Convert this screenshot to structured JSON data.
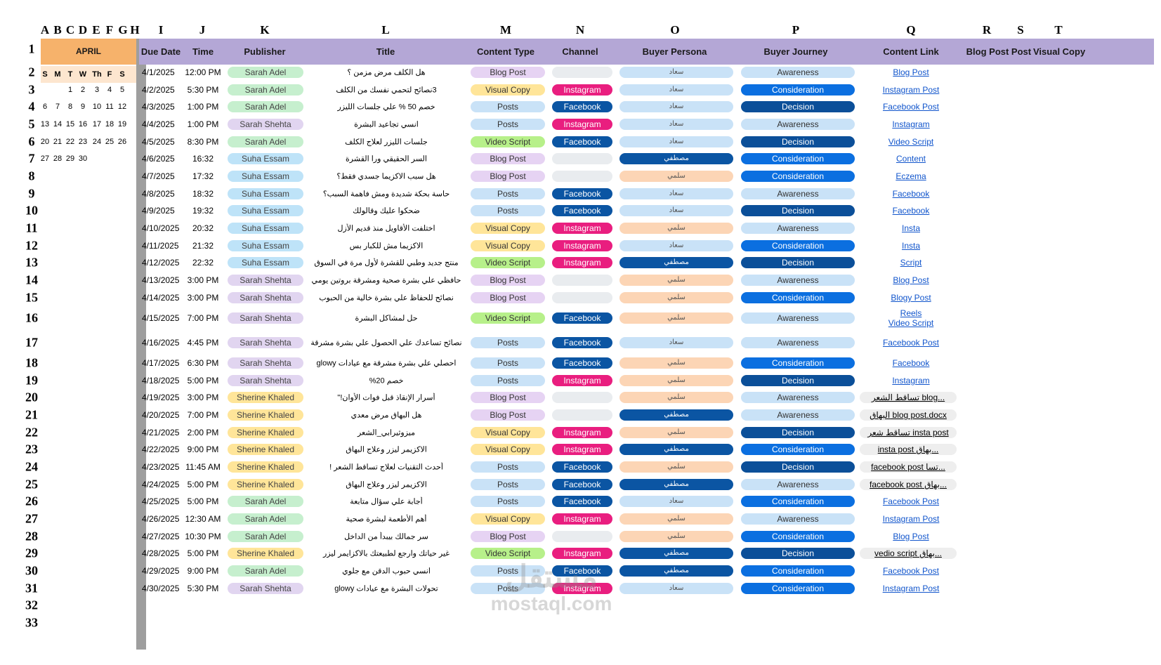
{
  "columns": [
    "A",
    "B",
    "C",
    "D",
    "E",
    "F",
    "G",
    "H",
    "I",
    "J",
    "K",
    "L",
    "M",
    "N",
    "O",
    "P",
    "Q",
    "R",
    "S",
    "T"
  ],
  "row_numbers": [
    "1",
    "2",
    "3",
    "4",
    "5",
    "6",
    "7",
    "8",
    "9",
    "10",
    "11",
    "12",
    "13",
    "14",
    "15",
    "16",
    "17",
    "18",
    "19",
    "20",
    "21",
    "22",
    "23",
    "24",
    "25",
    "26",
    "27",
    "28",
    "29",
    "30",
    "31",
    "32",
    "33"
  ],
  "calendar": {
    "month": "APRIL",
    "weekdays": [
      "S",
      "M",
      "T",
      "W",
      "Th",
      "F",
      "S"
    ],
    "weeks": [
      [
        "",
        "",
        "1",
        "2",
        "3",
        "4",
        "5"
      ],
      [
        "6",
        "7",
        "8",
        "9",
        "10",
        "11",
        "12"
      ],
      [
        "13",
        "14",
        "15",
        "16",
        "17",
        "18",
        "19"
      ],
      [
        "20",
        "21",
        "22",
        "23",
        "24",
        "25",
        "26"
      ],
      [
        "27",
        "28",
        "29",
        "30",
        "",
        "",
        ""
      ]
    ]
  },
  "headers": {
    "due_date": "Due Date",
    "time": "Time",
    "publisher": "Publisher",
    "title": "Title",
    "content_type": "Content Type",
    "channel": "Channel",
    "persona": "Buyer Persona",
    "journey": "Buyer Journey",
    "link": "Content Link",
    "blog_post": "Blog Post",
    "post": "Post",
    "visual_copy": "Visual Copy"
  },
  "colors": {
    "Sarah Adel": "#c6efce",
    "Sarah Shehta": "#e1d5f0",
    "Suha Essam": "#bee3f8",
    "Sherine Khaled": "#ffe599",
    "Blog Post": "#e6d3f3",
    "Visual Copy": "#ffe599",
    "Posts": "#c9e2f7",
    "Video Script": "#b7f08a",
    "Instagram": "#e91e7f",
    "Facebook": "#0b55a3",
    "empty_channel": "#e9ecef",
    "persona_1": "#c9e2f7",
    "persona_2": "#fcd5b5",
    "persona_3": "#0b55a3",
    "Awareness": "#c9e2f7",
    "Consideration": "#0b6fe0",
    "Decision": "#0b4f99"
  },
  "rows": [
    {
      "date": "4/1/2025",
      "time": "12:00 PM",
      "publisher": "Sarah Adel",
      "title": "هل الكلف مرض مزمن ؟",
      "type": "Blog Post",
      "channel": "",
      "persona": "سعاد",
      "persona_style": "persona_1",
      "journey": "Awareness",
      "link": "Blog Post",
      "link_style": "link"
    },
    {
      "date": "4/2/2025",
      "time": "5:30 PM",
      "publisher": "Sarah Adel",
      "title": "3نصائح لتحمي نفسك من الكلف",
      "type": "Visual Copy",
      "channel": "Instagram",
      "persona": "سعاد",
      "persona_style": "persona_1",
      "journey": "Consideration",
      "link": "Instagram Post",
      "link_style": "link"
    },
    {
      "date": "4/3/2025",
      "time": "1:00 PM",
      "publisher": "Sarah Adel",
      "title": "خصم 50 % علي جلسات الليزر",
      "type": "Posts",
      "channel": "Facebook",
      "persona": "سعاد",
      "persona_style": "persona_1",
      "journey": "Decision",
      "link": "Facebook Post",
      "link_style": "link"
    },
    {
      "date": "4/4/2025",
      "time": "1:00 PM",
      "publisher": "Sarah Shehta",
      "title": "انسي تجاعيد البشرة",
      "type": "Posts",
      "channel": "Instagram",
      "persona": "سعاد",
      "persona_style": "persona_1",
      "journey": "Awareness",
      "link": "Instagram",
      "link_style": "link"
    },
    {
      "date": "4/5/2025",
      "time": "8:30 PM",
      "publisher": "Sarah Adel",
      "title": "جلسات الليزر لعلاج الكلف",
      "type": "Video Script",
      "channel": "Facebook",
      "persona": "سعاد",
      "persona_style": "persona_1",
      "journey": "Decision",
      "link": "Video Script",
      "link_style": "link"
    },
    {
      "date": "4/6/2025",
      "time": "16:32",
      "publisher": "Suha Essam",
      "title": "السر الحقيقي ورا القشرة",
      "type": "Blog Post",
      "channel": "",
      "persona": "مصطفي",
      "persona_style": "persona_3",
      "journey": "Consideration",
      "link": "Content",
      "link_style": "link"
    },
    {
      "date": "4/7/2025",
      "time": "17:32",
      "publisher": "Suha Essam",
      "title": "هل سبب الاكزيما جسدي فقط؟",
      "type": "Blog Post",
      "channel": "",
      "persona": "سلمي",
      "persona_style": "persona_2",
      "journey": "Consideration",
      "link": "Eczema",
      "link_style": "link"
    },
    {
      "date": "4/8/2025",
      "time": "18:32",
      "publisher": "Suha Essam",
      "title": "حاسة بحكة شديدة ومش فاهمة السبب؟",
      "type": "Posts",
      "channel": "Facebook",
      "persona": "سعاد",
      "persona_style": "persona_1",
      "journey": "Awareness",
      "link": "Facebook",
      "link_style": "link"
    },
    {
      "date": "4/9/2025",
      "time": "19:32",
      "publisher": "Suha Essam",
      "title": "ضحكوا عليك وقالولك",
      "type": "Posts",
      "channel": "Facebook",
      "persona": "سعاد",
      "persona_style": "persona_1",
      "journey": "Decision",
      "link": "Facebook",
      "link_style": "link"
    },
    {
      "date": "4/10/2025",
      "time": "20:32",
      "publisher": "Suha Essam",
      "title": "اختلفت الأقاويل منذ قديم الأزل",
      "type": "Visual Copy",
      "channel": "Instagram",
      "persona": "سلمي",
      "persona_style": "persona_2",
      "journey": "Awareness",
      "link": "Insta",
      "link_style": "link"
    },
    {
      "date": "4/11/2025",
      "time": "21:32",
      "publisher": "Suha Essam",
      "title": "الاكزيما مش للكبار بس",
      "type": "Visual Copy",
      "channel": "Instagram",
      "persona": "سعاد",
      "persona_style": "persona_1",
      "journey": "Consideration",
      "link": "Insta",
      "link_style": "link"
    },
    {
      "date": "4/12/2025",
      "time": "22:32",
      "publisher": "Suha Essam",
      "title": "منتج جديد وطبي للقشرة لأول مرة في السوق",
      "type": "Video Script",
      "channel": "Instagram",
      "persona": "مصطفي",
      "persona_style": "persona_3",
      "journey": "Decision",
      "link": "Script",
      "link_style": "link"
    },
    {
      "date": "4/13/2025",
      "time": "3:00 PM",
      "publisher": "Sarah Shehta",
      "title": "حافظي علي بشرة صحية ومشرقة بروتين يومي",
      "type": "Blog Post",
      "channel": "",
      "persona": "سلمي",
      "persona_style": "persona_2",
      "journey": "Awareness",
      "link": "Blog Post",
      "link_style": "link"
    },
    {
      "date": "4/14/2025",
      "time": "3:00 PM",
      "publisher": "Sarah Shehta",
      "title": "نصائح للحفاظ علي بشرة خالية من الحبوب",
      "type": "Blog Post",
      "channel": "",
      "persona": "سلمي",
      "persona_style": "persona_2",
      "journey": "Consideration",
      "link": "Blogy Post",
      "link_style": "link"
    },
    {
      "date": "4/15/2025",
      "time": "7:00 PM",
      "publisher": "Sarah Shehta",
      "title": "حل لمشاكل البشرة",
      "type": "Video Script",
      "channel": "Facebook",
      "persona": "سلمي",
      "persona_style": "persona_2",
      "journey": "Awareness",
      "link": "Reels",
      "link2": "Video Script",
      "link_style": "two"
    },
    {
      "date": "4/16/2025",
      "time": "4:45 PM",
      "publisher": "Sarah Shehta",
      "title": "نصائح تساعدك علي الحصول علي بشرة مشرقة",
      "type": "Posts",
      "channel": "Facebook",
      "persona": "سعاد",
      "persona_style": "persona_1",
      "journey": "Awareness",
      "link": "Facebook Post",
      "link_style": "link"
    },
    {
      "date": "4/17/2025",
      "time": "6:30 PM",
      "publisher": "Sarah Shehta",
      "title": "احصلي علي بشرة مشرقة مع عيادات glowy",
      "type": "Posts",
      "channel": "Facebook",
      "persona": "سلمي",
      "persona_style": "persona_2",
      "journey": "Consideration",
      "link": "Facebook",
      "link_style": "link"
    },
    {
      "date": "4/18/2025",
      "time": "5:00 PM",
      "publisher": "Sarah Shehta",
      "title": "خصم 20%",
      "type": "Posts",
      "channel": "Instagram",
      "persona": "سلمي",
      "persona_style": "persona_2",
      "journey": "Decision",
      "link": "Instagram",
      "link_style": "link"
    },
    {
      "date": "4/19/2025",
      "time": "3:00 PM",
      "publisher": "Sherine Khaled",
      "title": "أسرار الإنقاذ قبل فوات الأوان!\"",
      "type": "Blog Post",
      "channel": "",
      "persona": "سلمي",
      "persona_style": "persona_2",
      "journey": "Awareness",
      "link": "تساقط الشعر blog...",
      "link_style": "chip"
    },
    {
      "date": "4/20/2025",
      "time": "7:00 PM",
      "publisher": "Sherine Khaled",
      "title": "هل البهاق مرض معدي",
      "type": "Blog Post",
      "channel": "",
      "persona": "مصطفي",
      "persona_style": "persona_3",
      "journey": "Awareness",
      "link": "البهاق blog post.docx",
      "link_style": "chip"
    },
    {
      "date": "4/21/2025",
      "time": "2:00 PM",
      "publisher": "Sherine Khaled",
      "title": "ميزوثيرابي_الشعر",
      "type": "Visual Copy",
      "channel": "Instagram",
      "persona": "سلمي",
      "persona_style": "persona_2",
      "journey": "Decision",
      "link": "تساقط شعر insta post",
      "link_style": "chip"
    },
    {
      "date": "4/22/2025",
      "time": "9:00 PM",
      "publisher": "Sherine Khaled",
      "title": "الاكزيمر ليزر وعلاج البهاق",
      "type": "Visual Copy",
      "channel": "Instagram",
      "persona": "مصطفي",
      "persona_style": "persona_3",
      "journey": "Consideration",
      "link": "insta post بهاق...",
      "link_style": "chip"
    },
    {
      "date": "4/23/2025",
      "time": "11:45 AM",
      "publisher": "Sherine Khaled",
      "title": "أحدث التقنيات لعلاج تساقط الشعر !",
      "type": "Posts",
      "channel": "Facebook",
      "persona": "سلمي",
      "persona_style": "persona_2",
      "journey": "Decision",
      "link": "facebook post تسا...",
      "link_style": "chip"
    },
    {
      "date": "4/24/2025",
      "time": "5:00 PM",
      "publisher": "Sherine Khaled",
      "title": "الاكزيمر ليزر وعلاج البهاق",
      "type": "Posts",
      "channel": "Facebook",
      "persona": "مصطفي",
      "persona_style": "persona_3",
      "journey": "Awareness",
      "link": "facebook post بهاق...",
      "link_style": "chip"
    },
    {
      "date": "4/25/2025",
      "time": "5:00 PM",
      "publisher": "Sarah Adel",
      "title": "أجابة علي سؤال متابعة",
      "type": "Posts",
      "channel": "Facebook",
      "persona": "سعاد",
      "persona_style": "persona_1",
      "journey": "Consideration",
      "link": "Facebook Post",
      "link_style": "link"
    },
    {
      "date": "4/26/2025",
      "time": "12:30 AM",
      "publisher": "Sarah Adel",
      "title": "أهم الأطعمة لبشرة صحية",
      "type": "Visual Copy",
      "channel": "Instagram",
      "persona": "سلمي",
      "persona_style": "persona_2",
      "journey": "Awareness",
      "link": "Instagram Post",
      "link_style": "link"
    },
    {
      "date": "4/27/2025",
      "time": "10:30 PM",
      "publisher": "Sarah Adel",
      "title": "سر جمالك بيبدأ من الداخل",
      "type": "Blog Post",
      "channel": "",
      "persona": "سلمي",
      "persona_style": "persona_2",
      "journey": "Consideration",
      "link": "Blog Post",
      "link_style": "link"
    },
    {
      "date": "4/28/2025",
      "time": "5:00 PM",
      "publisher": "Sherine Khaled",
      "title": "غير حياتك وارجع لطبيعتك بالاكزايمر ليزر",
      "type": "Video Script",
      "channel": "Instagram",
      "persona": "مصطفي",
      "persona_style": "persona_3",
      "journey": "Decision",
      "link": "vedio script بهاق...",
      "link_style": "chip"
    },
    {
      "date": "4/29/2025",
      "time": "9:00 PM",
      "publisher": "Sarah Adel",
      "title": "انسي حبوب الدقن مع جلوي",
      "type": "Posts",
      "channel": "Facebook",
      "persona": "مصطفي",
      "persona_style": "persona_3",
      "journey": "Consideration",
      "link": "Facebook Post",
      "link_style": "link"
    },
    {
      "date": "4/30/2025",
      "time": "5:30 PM",
      "publisher": "Sarah Shehta",
      "title": "تحولات البشرة مع عيادات glowy",
      "type": "Posts",
      "channel": "Instagram",
      "persona": "سعاد",
      "persona_style": "persona_1",
      "journey": "Consideration",
      "link": "Instagram Post",
      "link_style": "link"
    }
  ],
  "watermark": {
    "logo": "مستقل",
    "text": "mostaql.com"
  }
}
